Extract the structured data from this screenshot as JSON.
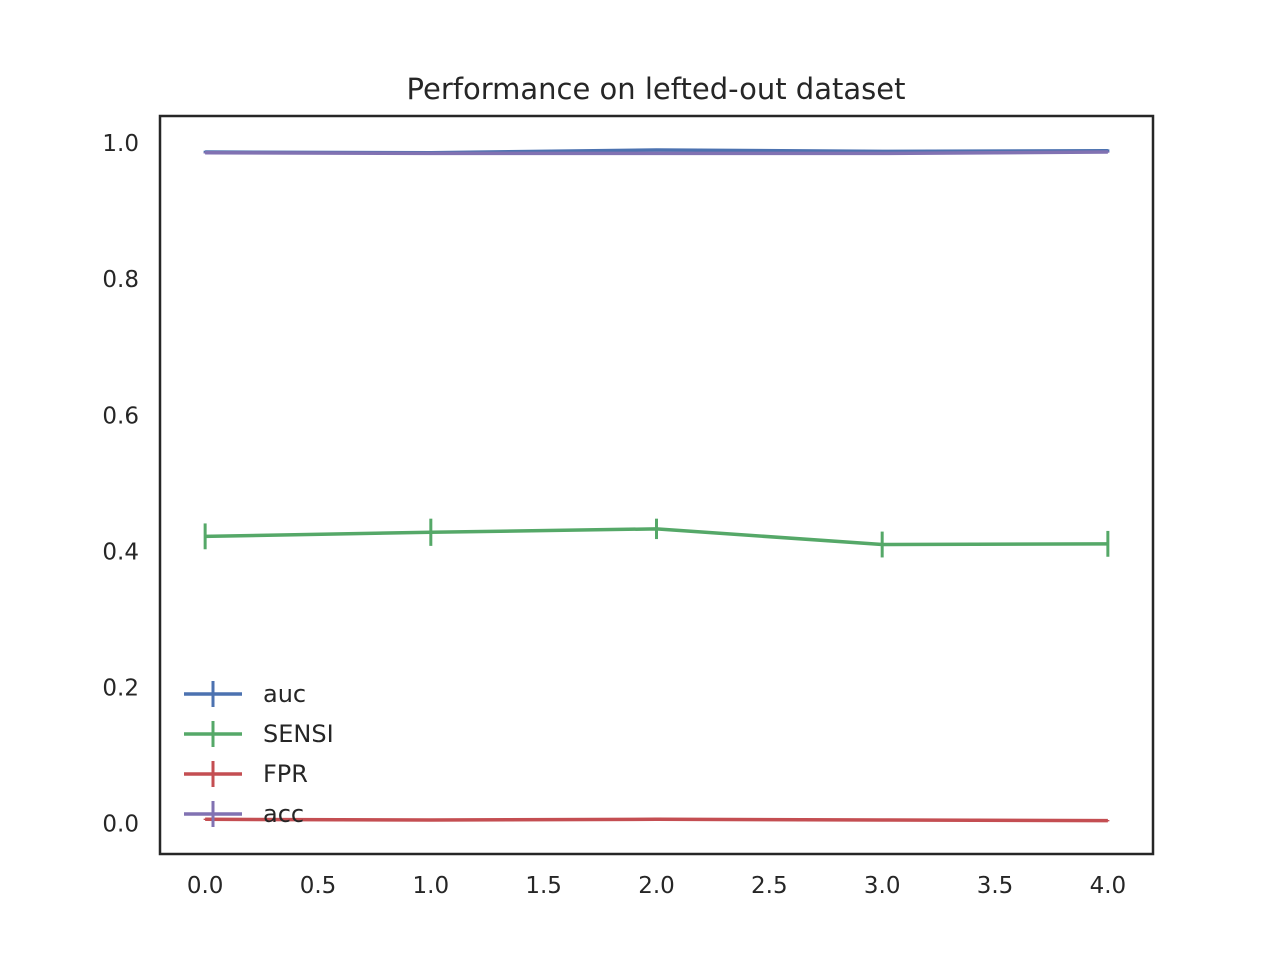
{
  "chart_data": {
    "type": "line",
    "title": "Performance on lefted-out dataset",
    "xlabel": "",
    "ylabel": "",
    "x": [
      0,
      1,
      2,
      3,
      4
    ],
    "xlim": [
      -0.2,
      4.2
    ],
    "ylim": [
      -0.045,
      1.04
    ],
    "x_ticks": [
      "0.0",
      "0.5",
      "1.0",
      "1.5",
      "2.0",
      "2.5",
      "3.0",
      "3.5",
      "4.0"
    ],
    "y_ticks": [
      "0.0",
      "0.2",
      "0.4",
      "0.6",
      "0.8",
      "1.0"
    ],
    "grid": false,
    "legend_position": "lower-left",
    "series": [
      {
        "name": "auc",
        "color": "#4c72b0",
        "values": [
          0.987,
          0.986,
          0.99,
          0.988,
          0.989
        ],
        "errors": [
          0.002,
          0.002,
          0.002,
          0.002,
          0.002
        ]
      },
      {
        "name": "SENSI",
        "color": "#55a868",
        "values": [
          0.422,
          0.428,
          0.433,
          0.41,
          0.411
        ],
        "errors": [
          0.019,
          0.02,
          0.015,
          0.019,
          0.019
        ]
      },
      {
        "name": "FPR",
        "color": "#c44e52",
        "values": [
          0.006,
          0.005,
          0.006,
          0.005,
          0.004
        ],
        "errors": [
          0.001,
          0.001,
          0.001,
          0.001,
          0.001
        ]
      },
      {
        "name": "acc",
        "color": "#8172b2",
        "values": [
          0.986,
          0.985,
          0.985,
          0.985,
          0.987
        ],
        "errors": [
          0.001,
          0.001,
          0.001,
          0.001,
          0.001
        ]
      }
    ]
  }
}
